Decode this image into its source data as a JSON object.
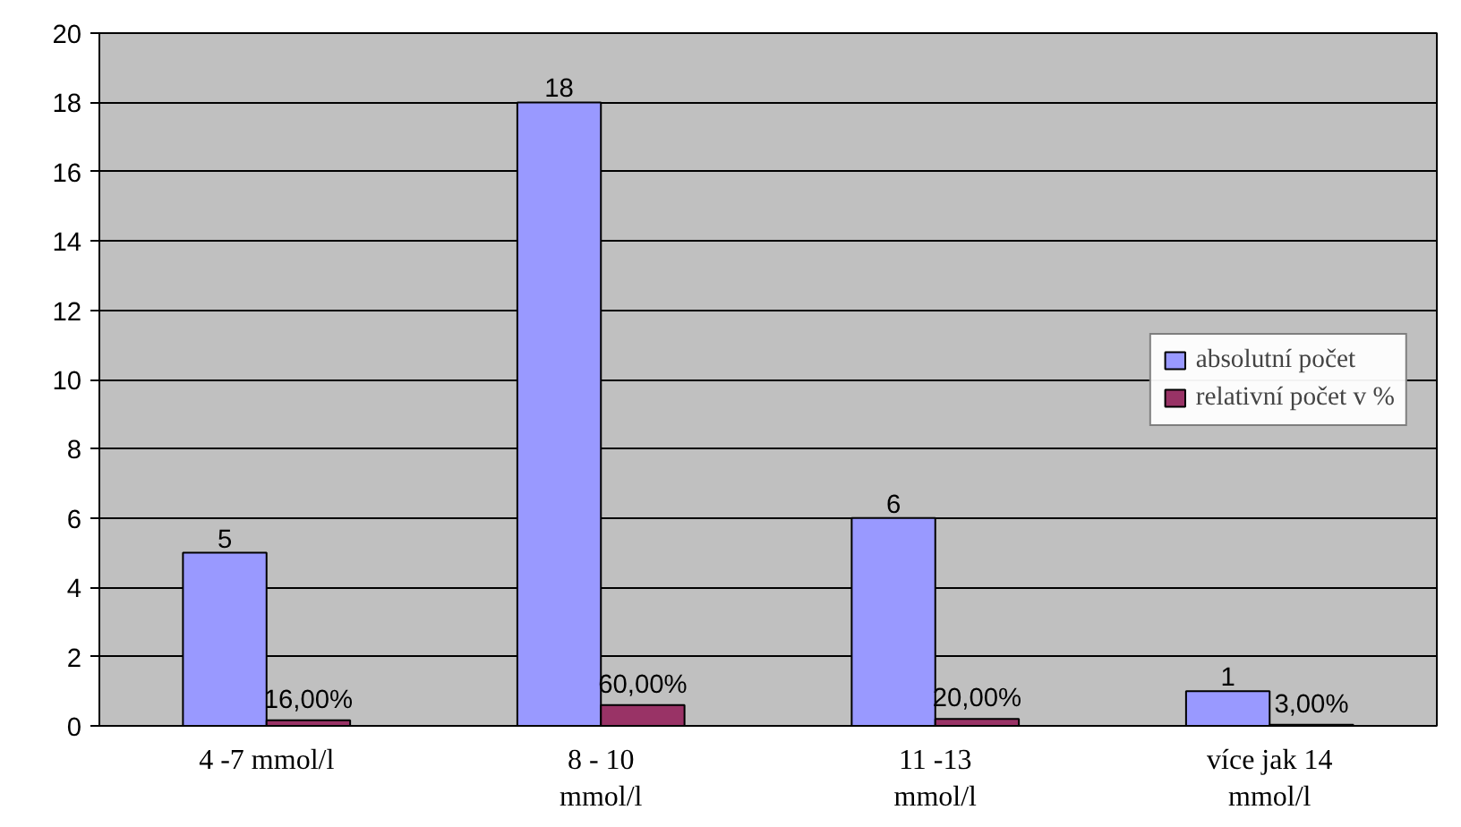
{
  "chart_data": {
    "type": "bar",
    "categories": [
      "4 -7 mmol/l",
      "8 - 10 mmol/l",
      "11 -13 mmol/l",
      "více jak 14 mmol/l"
    ],
    "series": [
      {
        "name": "absolutní počet",
        "color": "#9999ff",
        "values": [
          5,
          18,
          6,
          1
        ],
        "value_labels": [
          "5",
          "18",
          "6",
          "1"
        ]
      },
      {
        "name": "relativní počet v %",
        "color": "#993366",
        "values": [
          0.16,
          0.6,
          0.2,
          0.03
        ],
        "value_labels": [
          "16,00%",
          "60,00%",
          "20,00%",
          "3,00%"
        ]
      }
    ],
    "ylim": [
      0,
      20
    ],
    "yticks": [
      0,
      2,
      4,
      6,
      8,
      10,
      12,
      14,
      16,
      18,
      20
    ],
    "grid": "y",
    "legend": "right"
  }
}
